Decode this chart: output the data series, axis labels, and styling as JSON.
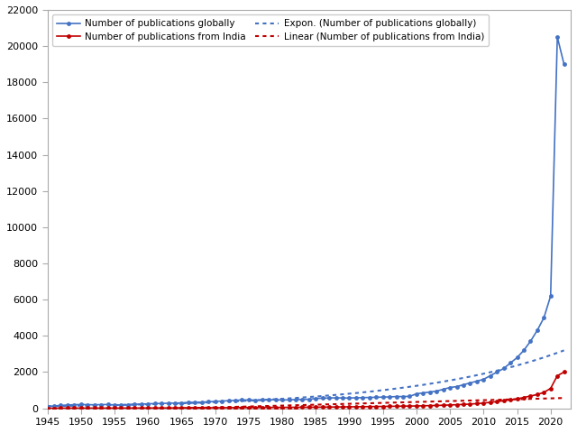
{
  "title": "",
  "xlabel": "",
  "ylabel": "",
  "xlim": [
    1945,
    2023
  ],
  "ylim": [
    0,
    22000
  ],
  "yticks": [
    0,
    2000,
    4000,
    6000,
    8000,
    10000,
    12000,
    14000,
    16000,
    18000,
    20000,
    22000
  ],
  "xticks": [
    1945,
    1950,
    1955,
    1960,
    1965,
    1970,
    1975,
    1980,
    1985,
    1990,
    1995,
    2000,
    2005,
    2010,
    2015,
    2020
  ],
  "global_color": "#4472C4",
  "india_color": "#C00000",
  "trend_global_color": "#4472C4",
  "trend_india_color": "#C00000",
  "legend_global": "Number of publications globally",
  "legend_india": "Number of publications from India",
  "legend_trend_global": "Expon. (Number of publications globally)",
  "legend_trend_india": "Linear (Number of publications from India)",
  "years": [
    1945,
    1946,
    1947,
    1948,
    1949,
    1950,
    1951,
    1952,
    1953,
    1954,
    1955,
    1956,
    1957,
    1958,
    1959,
    1960,
    1961,
    1962,
    1963,
    1964,
    1965,
    1966,
    1967,
    1968,
    1969,
    1970,
    1971,
    1972,
    1973,
    1974,
    1975,
    1976,
    1977,
    1978,
    1979,
    1980,
    1981,
    1982,
    1983,
    1984,
    1985,
    1986,
    1987,
    1988,
    1989,
    1990,
    1991,
    1992,
    1993,
    1994,
    1995,
    1996,
    1997,
    1998,
    1999,
    2000,
    2001,
    2002,
    2003,
    2004,
    2005,
    2006,
    2007,
    2008,
    2009,
    2010,
    2011,
    2012,
    2013,
    2014,
    2015,
    2016,
    2017,
    2018,
    2019,
    2020,
    2021,
    2022
  ],
  "global_pubs": [
    100,
    130,
    160,
    180,
    200,
    210,
    200,
    195,
    205,
    210,
    185,
    190,
    200,
    220,
    230,
    250,
    260,
    270,
    280,
    290,
    300,
    320,
    330,
    340,
    360,
    380,
    400,
    420,
    440,
    460,
    460,
    450,
    460,
    470,
    470,
    460,
    470,
    480,
    490,
    500,
    540,
    560,
    570,
    580,
    570,
    570,
    580,
    590,
    600,
    610,
    620,
    630,
    650,
    650,
    660,
    800,
    850,
    900,
    950,
    1050,
    1150,
    1200,
    1300,
    1400,
    1500,
    1600,
    1800,
    2000,
    2200,
    2500,
    2800,
    3200,
    3700,
    4300,
    5000,
    6200,
    20500,
    19000
  ],
  "india_pubs": [
    5,
    6,
    7,
    8,
    9,
    10,
    10,
    11,
    11,
    12,
    12,
    13,
    14,
    15,
    16,
    17,
    18,
    19,
    20,
    21,
    22,
    24,
    26,
    28,
    30,
    32,
    34,
    36,
    38,
    40,
    42,
    44,
    46,
    48,
    50,
    52,
    54,
    56,
    58,
    60,
    63,
    66,
    70,
    74,
    78,
    82,
    86,
    90,
    95,
    100,
    105,
    110,
    115,
    120,
    125,
    130,
    140,
    150,
    160,
    170,
    185,
    200,
    215,
    235,
    260,
    290,
    330,
    370,
    420,
    470,
    520,
    600,
    680,
    760,
    880,
    1100,
    1800,
    2000
  ],
  "background_color": "#FFFFFF",
  "grid": false
}
